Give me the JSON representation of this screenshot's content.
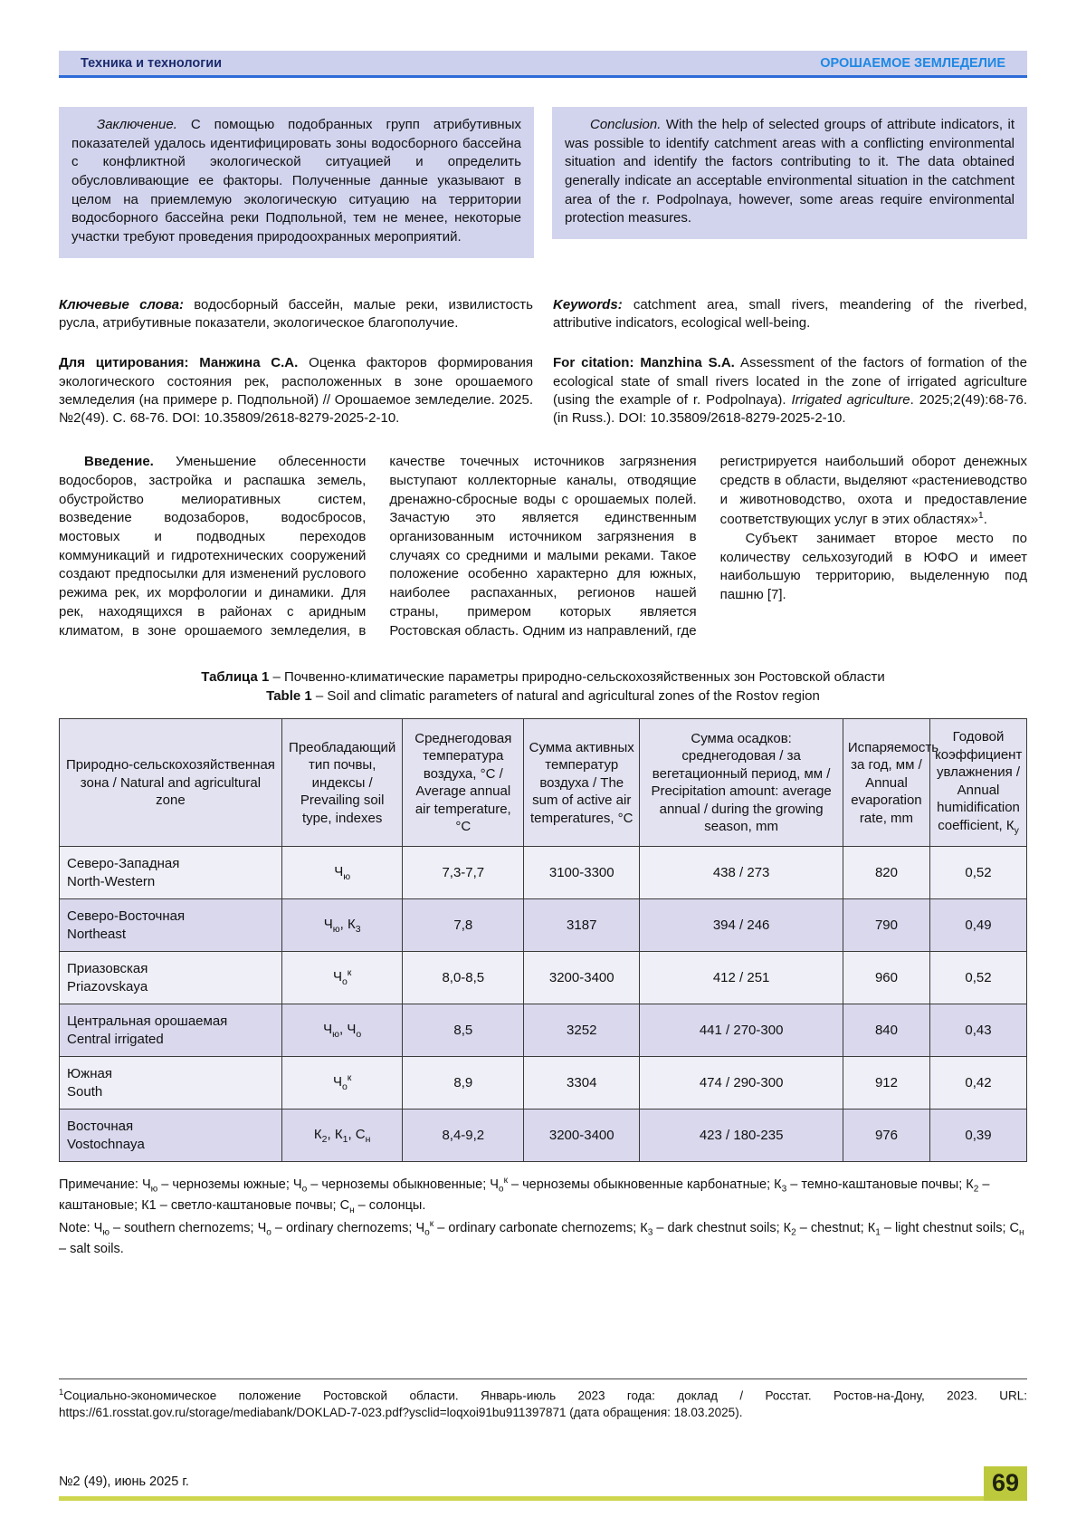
{
  "colors": {
    "accent_blue": "#2e6bd8",
    "header_bg": "#ccd0ec",
    "header_left_color": "#1a2a6e",
    "header_right_color": "#1e88e5",
    "box_bg": "#d2d4ee",
    "table_header_bg": "#e3e2f0",
    "row_light": "#efeff8",
    "row_dark": "#d9d8ed",
    "footer_line": "#cdd64e",
    "page_badge_bg": "#bdc93c"
  },
  "header": {
    "left": "Техника и технологии",
    "right": "ОРОШАЕМОЕ ЗЕМЛЕДЕЛИЕ"
  },
  "conclusion": {
    "ru": "<i>Заключение.</i> С помощью подобранных групп атрибутивных показателей удалось идентифицировать зоны водосборного бассейна с конфликтной экологической ситуацией и определить обусловливающие ее факторы. Полученные данные указывают в целом на приемлемую экологическую ситуацию на территории водосборного бассейна реки Подпольной, тем не менее, некоторые участки требуют проведения природоохранных мероприятий.",
    "en": "<i>Conclusion.</i> With the help of selected groups of attribute indicators, it was possible to identify catchment areas with a conflicting environmental situation and identify the factors contributing to it. The data obtained generally indicate an acceptable environmental situation in the catchment area of the r. Podpolnaya, however, some areas require environmental protection measures."
  },
  "keywords": {
    "ru": "<b><i>Ключевые слова:</i></b> водосборный бассейн, малые реки, извилистость русла, атрибутивные показатели, экологическое благополучие.",
    "en": "<b><i>Keywords:</i></b> catchment area, small rivers, meandering of the riverbed, attributive indicators, ecological well-being."
  },
  "citation": {
    "ru": "<b>Для цитирования: Манжина С.А.</b> Оценка факторов формирования экологического состояния рек, расположенных в зоне орошаемого земледелия (на примере р. Подпольной) // Орошаемое земледелие. 2025. №2(49). С. 68-76. DOI: 10.35809/2618-8279-2025-2-10.",
    "en": "<b>For citation: Manzhina S.A.</b> Assessment of the factors of formation of the ecological state of small rivers located in the zone of irrigated agriculture (using the example of r. Podpolnaya). <i>Irrigated agriculture</i>. 2025;2(49):68-76. (in Russ.). DOI: 10.35809/2618-8279-2025-2-10."
  },
  "introduction": {
    "p1": "<b>Введение.</b> Уменьшение облесенности водосборов, застройка и распашка земель, обустройство мелиоративных систем, возведение водозаборов, водосбросов, мостовых и подводных переходов коммуникаций и гидротехнических сооружений создают предпосылки для изменений руслового режима рек, их морфологии и динамики. Для рек, находящихся в районах с аридным климатом, в зоне орошаемого земледелия, в качестве точечных источников загрязнения выступают коллекторные каналы, отводящие дренажно-сбросные воды с орошаемых полей. Зачастую это является единственным организованным источником загрязнения в случаях со средними и малыми реками. Такое положение особенно характерно для южных, наиболее распаханных, регионов нашей страны, примером которых является Ростовская область. Одним из направлений, где регистрируется наибольший оборот денежных средств в области, выделяют «растениеводство и животноводство, охота и предоставление соответствующих услуг в этих областях»<sup>1</sup>.",
    "p2": "Субъект занимает второе место по количеству сельхозугодий в ЮФО и имеет наибольшую территорию, выделенную под пашню [7]."
  },
  "table": {
    "caption_ru": "<b>Таблица 1</b> – Почвенно-климатические параметры природно-сельскохозяйственных зон Ростовской области",
    "caption_en": "<b>Table 1</b> – Soil and climatic parameters of natural and agricultural zones of the Rostov region",
    "headers": [
      "Природно-сельскохозяйственная зона / Natural and agricultural zone",
      "Преобладающий тип почвы, индексы / Prevailing soil type, indexes",
      "Среднегодовая температура воздуха, °С / Average annual air temperature, °С",
      "Сумма активных температур воздуха / The sum of active air temperatures, °С",
      "Сумма осадков: среднегодовая / за вегетационный период, мм / Precipitation amount: average annual / during the growing season, mm",
      "Испаряемость за год, мм / Annual evaporation rate, mm",
      "Годовой коэффициент увлажнения / Annual humidification coefficient, К<sub>у</sub>"
    ],
    "rows": [
      {
        "zone_ru": "Северо-Западная",
        "zone_en": "North-Western",
        "soil": "Ч<sub>ю</sub>",
        "temp": "7,3-7,7",
        "sum_temp": "3100-3300",
        "precip": "438 / 273",
        "evap": "820",
        "coeff": "0,52"
      },
      {
        "zone_ru": "Северо-Восточная",
        "zone_en": "Northeast",
        "soil": "Ч<sub>ю</sub>, К<sub>3</sub>",
        "temp": "7,8",
        "sum_temp": "3187",
        "precip": "394 / 246",
        "evap": "790",
        "coeff": "0,49"
      },
      {
        "zone_ru": "Приазовская",
        "zone_en": "Priazovskaya",
        "soil": "Ч<sub>о</sub><sup>к</sup>",
        "temp": "8,0-8,5",
        "sum_temp": "3200-3400",
        "precip": "412 / 251",
        "evap": "960",
        "coeff": "0,52"
      },
      {
        "zone_ru": "Центральная орошаемая",
        "zone_en": "Central irrigated",
        "soil": "Ч<sub>ю</sub>, Ч<sub>о</sub>",
        "temp": "8,5",
        "sum_temp": "3252",
        "precip": "441 / 270-300",
        "evap": "840",
        "coeff": "0,43"
      },
      {
        "zone_ru": "Южная",
        "zone_en": "South",
        "soil": "Ч<sub>о</sub><sup>к</sup>",
        "temp": "8,9",
        "sum_temp": "3304",
        "precip": "474 / 290-300",
        "evap": "912",
        "coeff": "0,42"
      },
      {
        "zone_ru": "Восточная",
        "zone_en": "Vostochnaya",
        "soil": "К<sub>2</sub>, К<sub>1</sub>, С<sub>н</sub>",
        "temp": "8,4-9,2",
        "sum_temp": "3200-3400",
        "precip": "423 / 180-235",
        "evap": "976",
        "coeff": "0,39"
      }
    ]
  },
  "note": {
    "ru": "Примечание: Ч<sub>ю</sub> – черноземы южные; Ч<sub>о</sub> – черноземы обыкновенные; Ч<sub>о</sub><sup>к</sup> – черноземы обыкновенные карбонатные; К<sub>3</sub> – темно-каштановые почвы; К<sub>2</sub> – каштановые; К1 – светло-каштановые почвы; С<sub>н</sub> – солонцы.",
    "en": "Note: Ч<sub>ю</sub> – southern chernozems; Ч<sub>о</sub> – ordinary chernozems; Ч<sub>о</sub><sup>к</sup> – ordinary carbonate chernozems; К<sub>3</sub> – dark chestnut soils; К<sub>2</sub> – chestnut; К<sub>1</sub> – light chestnut soils; С<sub>н</sub> – salt soils."
  },
  "footnote": {
    "text": "<sup>1</sup>Социально-экономическое положение Ростовской области. Январь-июль 2023 года: доклад / Росстат. Ростов-на-Дону, 2023. URL: https://61.rosstat.gov.ru/storage/mediabank/DOKLAD-7-023.pdf?ysclid=loqxoi91bu911397871 (дата обращения: 18.03.2025)."
  },
  "footer": {
    "issue": "№2 (49), июнь 2025 г.",
    "page": "69"
  }
}
